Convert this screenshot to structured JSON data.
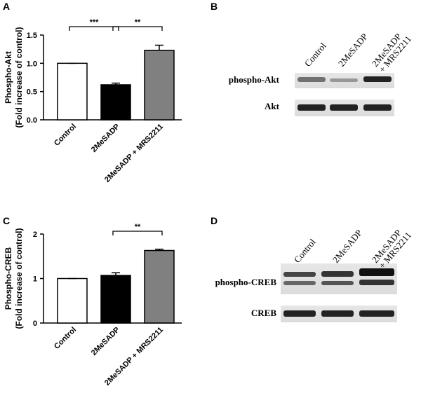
{
  "panels": [
    "A",
    "B",
    "C",
    "D"
  ],
  "chart_data": [
    {
      "type": "bar",
      "ylabel": [
        "Phospho-Akt",
        "(Fold increase of control)"
      ],
      "categories": [
        "Control",
        "2MeSADP",
        "2MeSADP + MRS2211"
      ],
      "values": [
        1.0,
        0.62,
        1.23
      ],
      "errors": [
        0,
        0.03,
        0.09
      ],
      "colors": [
        "#ffffff",
        "#000000",
        "#808080"
      ],
      "ylim": [
        0,
        1.5
      ],
      "yticks": [
        {
          "value": 0,
          "label": "0.0"
        },
        0.5,
        {
          "value": 1,
          "label": "1.0"
        },
        1.5
      ],
      "annotations": [
        {
          "text": "***",
          "between": [
            "Control",
            "2MeSADP"
          ]
        },
        {
          "text": "**",
          "between": [
            "2MeSADP",
            "2MeSADP + MRS2211"
          ]
        }
      ]
    },
    {
      "type": "bar",
      "ylabel": [
        "Phospho-CREB",
        "(Fold increase of control)"
      ],
      "categories": [
        "Control",
        "2MeSADP",
        "2MeSADP + MRS2211"
      ],
      "values": [
        1.0,
        1.07,
        1.63
      ],
      "errors": [
        0,
        0.06,
        0.03
      ],
      "colors": [
        "#ffffff",
        "#000000",
        "#808080"
      ],
      "ylim": [
        0,
        2
      ],
      "yticks": [
        0,
        1,
        2
      ],
      "annotations": [
        {
          "text": "**",
          "between": [
            "2MeSADP",
            "2MeSADP + MRS2211"
          ]
        }
      ]
    }
  ],
  "blots": [
    {
      "lanes": [
        [
          "Control"
        ],
        [
          "2MeSADP"
        ],
        [
          "2MeSADP",
          "+ MRS2211"
        ]
      ],
      "rows": [
        "phospho-Akt",
        "Akt"
      ]
    },
    {
      "lanes": [
        [
          "Control"
        ],
        [
          "2MeSADP"
        ],
        [
          "2MeSADP",
          "+ MRS2211"
        ]
      ],
      "rows": [
        "phospho-CREB",
        "CREB"
      ]
    }
  ]
}
